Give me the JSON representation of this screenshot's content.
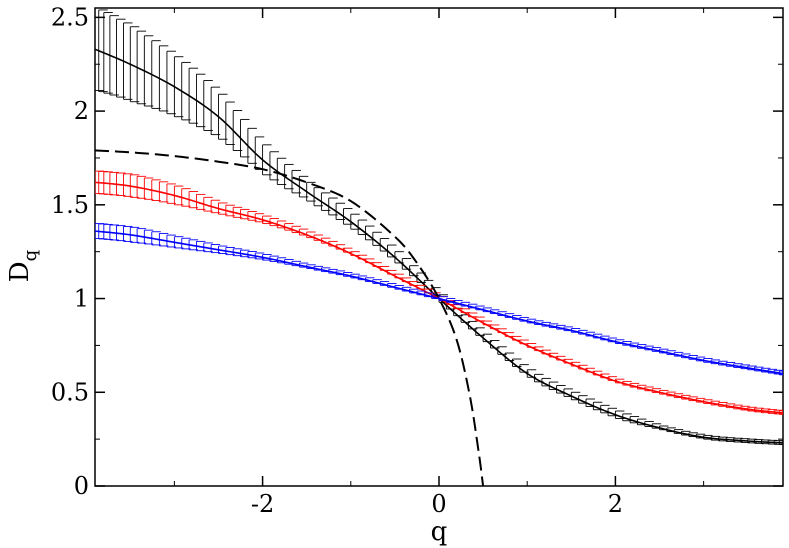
{
  "chart_data": {
    "type": "line",
    "title": "",
    "xlabel": "q",
    "ylabel": "D",
    "ylabel_subscript": "q",
    "xlim": [
      -3.9,
      3.9
    ],
    "ylim": [
      0,
      2.55
    ],
    "xticks": [
      -2,
      0,
      2
    ],
    "xtick_labels": [
      "-2",
      "0",
      "2"
    ],
    "yticks": [
      0,
      0.5,
      1,
      1.5,
      2,
      2.5
    ],
    "ytick_labels": [
      "0",
      "0.5",
      "1",
      "1.5",
      "2",
      "2.5"
    ],
    "grid": false,
    "legend": "none",
    "series": [
      {
        "color": "#000000",
        "style": "solid",
        "error_bars": true,
        "x": [
          -3.9,
          -3.5,
          -3.0,
          -2.5,
          -2.0,
          -1.5,
          -1.0,
          -0.5,
          0.0,
          0.5,
          1.0,
          1.5,
          2.0,
          2.5,
          3.0,
          3.5,
          3.9
        ],
        "y": [
          2.33,
          2.25,
          2.13,
          1.97,
          1.74,
          1.57,
          1.41,
          1.22,
          1.0,
          0.79,
          0.6,
          0.48,
          0.38,
          0.31,
          0.26,
          0.24,
          0.23
        ],
        "err": [
          0.22,
          0.2,
          0.16,
          0.12,
          0.08,
          0.05,
          0.04,
          0.03,
          0.02,
          0.02,
          0.02,
          0.02,
          0.02,
          0.01,
          0.01,
          0.01,
          0.01
        ]
      },
      {
        "color": "#ff0000",
        "style": "solid",
        "error_bars": true,
        "x": [
          -3.9,
          -3.5,
          -3.0,
          -2.5,
          -2.0,
          -1.5,
          -1.0,
          -0.5,
          0.0,
          0.5,
          1.0,
          1.5,
          2.0,
          2.5,
          3.0,
          3.5,
          3.9
        ],
        "y": [
          1.62,
          1.6,
          1.55,
          1.48,
          1.42,
          1.34,
          1.24,
          1.12,
          1.0,
          0.87,
          0.75,
          0.65,
          0.56,
          0.5,
          0.45,
          0.41,
          0.39
        ],
        "err": [
          0.06,
          0.06,
          0.05,
          0.03,
          0.02,
          0.015,
          0.01,
          0.01,
          0.01,
          0.01,
          0.01,
          0.01,
          0.01,
          0.01,
          0.01,
          0.01,
          0.01
        ]
      },
      {
        "color": "#0000ff",
        "style": "solid",
        "error_bars": true,
        "x": [
          -3.9,
          -3.5,
          -3.0,
          -2.5,
          -2.0,
          -1.5,
          -1.0,
          -0.5,
          0.0,
          0.5,
          1.0,
          1.5,
          2.0,
          2.5,
          3.0,
          3.5,
          3.9
        ],
        "y": [
          1.36,
          1.34,
          1.3,
          1.26,
          1.22,
          1.17,
          1.12,
          1.06,
          1.0,
          0.94,
          0.88,
          0.83,
          0.77,
          0.72,
          0.67,
          0.63,
          0.6
        ],
        "err": [
          0.04,
          0.04,
          0.03,
          0.02,
          0.015,
          0.01,
          0.01,
          0.01,
          0.01,
          0.01,
          0.01,
          0.01,
          0.01,
          0.01,
          0.01,
          0.01,
          0.01
        ]
      },
      {
        "color": "#000000",
        "style": "dashed",
        "error_bars": false,
        "x": [
          -3.9,
          -3.5,
          -3.0,
          -2.5,
          -2.0,
          -1.5,
          -1.0,
          -0.5,
          -0.25,
          0.0,
          0.2,
          0.35,
          0.45,
          0.5
        ],
        "y": [
          1.79,
          1.78,
          1.76,
          1.73,
          1.69,
          1.62,
          1.52,
          1.33,
          1.19,
          1.0,
          0.78,
          0.48,
          0.18,
          0.0
        ]
      }
    ]
  }
}
